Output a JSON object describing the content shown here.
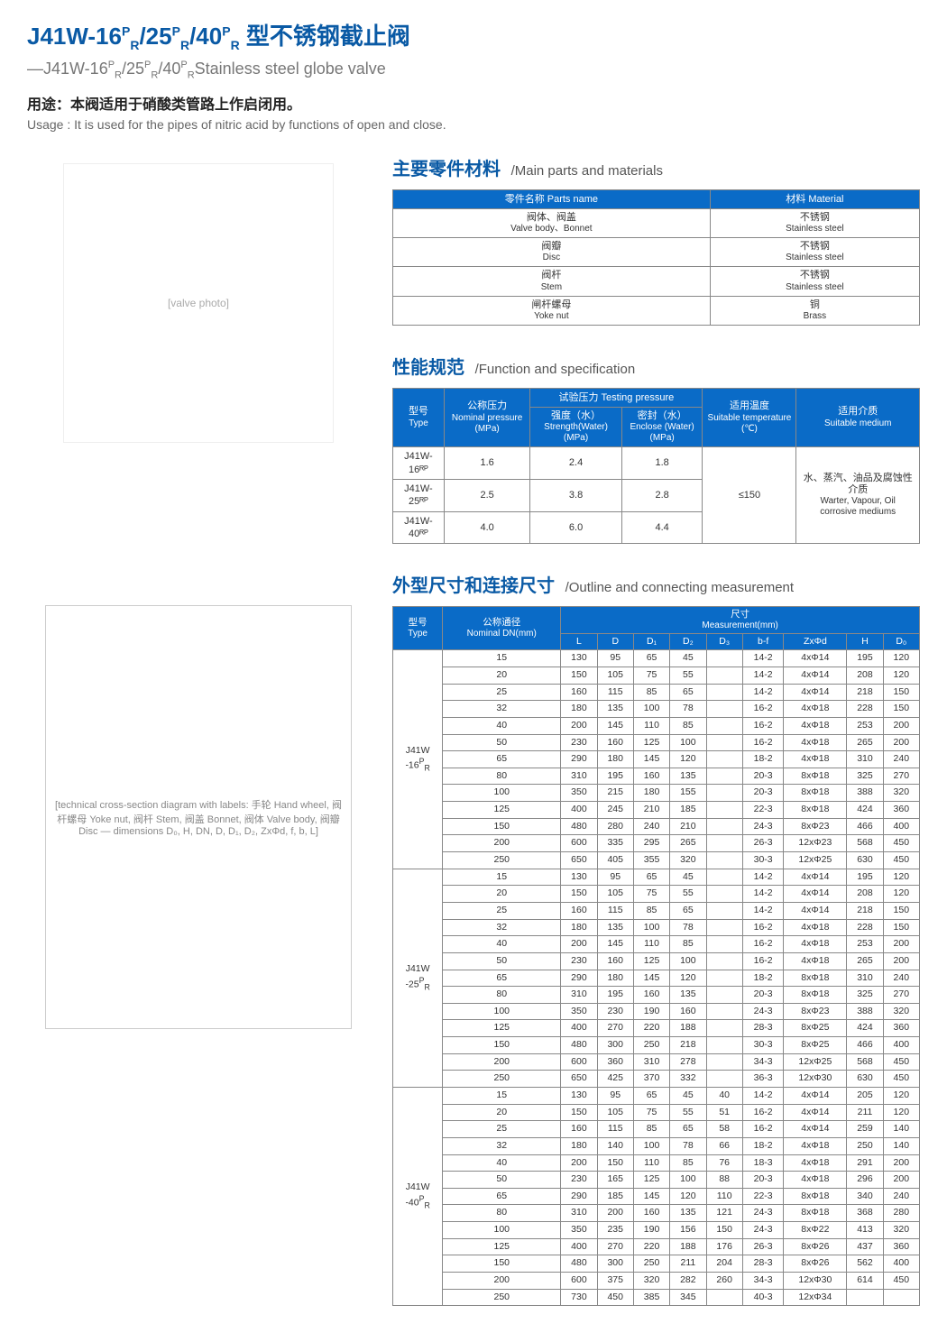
{
  "header": {
    "title_html": "J41W-16<sup>P</sup><sub>R</sub>/25<sup>P</sup><sub>R</sub>/40<sup>P</sup><sub>R</sub> 型不锈钢截止阀",
    "subtitle_html": "—J41W-16<sup>P</sup><sub>R</sub>/25<sup>P</sup><sub>R</sub>/40<sup>P</sup><sub>R</sub>Stainless steel globe valve",
    "usage_cn": "用途：本阀适用于硝酸类管路上作启闭用。",
    "usage_en": "Usage : It is used for the pipes of nitric acid by functions of open and close."
  },
  "placeholders": {
    "photo": "[valve photo]",
    "diagram": "[technical cross-section diagram with labels: 手轮 Hand wheel, 阀杆螺母 Yoke nut, 阀杆 Stem, 阀盖 Bonnet, 阀体 Valve body, 阀瓣 Disc — dimensions D₀, H, DN, D, D₁, D₂, ZxΦd, f, b, L]"
  },
  "sections": {
    "parts": {
      "title_cn": "主要零件材料",
      "title_en": "/Main parts and materials"
    },
    "spec": {
      "title_cn": "性能规范",
      "title_en": "/Function and specification"
    },
    "dims": {
      "title_cn": "外型尺寸和连接尺寸",
      "title_en": "/Outline and connecting measurement"
    }
  },
  "parts_table": {
    "header_parts": "零件名称  Parts name",
    "header_material": "材料  Material",
    "rows": [
      {
        "p_cn": "阀体、阀盖",
        "p_en": "Valve body、Bonnet",
        "m_cn": "不锈钢",
        "m_en": "Stainless steel"
      },
      {
        "p_cn": "阀瓣",
        "p_en": "Disc",
        "m_cn": "不锈钢",
        "m_en": "Stainless steel"
      },
      {
        "p_cn": "阀杆",
        "p_en": "Stem",
        "m_cn": "不锈钢",
        "m_en": "Stainless steel"
      },
      {
        "p_cn": "闸杆螺母",
        "p_en": "Yoke nut",
        "m_cn": "铜",
        "m_en": "Brass"
      }
    ]
  },
  "spec_table": {
    "h_type_cn": "型号",
    "h_type_en": "Type",
    "h_nominal_cn": "公称压力",
    "h_nominal_en": "Nominal pressure (MPa)",
    "h_test_cn": "试验压力 Testing pressure",
    "h_strength_cn": "强度（水）",
    "h_strength_en": "Strength(Water) (MPa)",
    "h_enclose_cn": "密封（水）",
    "h_enclose_en": "Enclose (Water) (MPa)",
    "h_temp_cn": "适用温度",
    "h_temp_en": "Suitable temperature (℃)",
    "h_medium_cn": "适用介质",
    "h_medium_en": "Suitable medium",
    "temp_val": "≤150",
    "medium_cn": "水、蒸汽、油品及腐蚀性介质",
    "medium_en": "Warter, Vapour, Oil corrosive mediums",
    "rows": [
      {
        "type": "J41W-16ᴿᴾ",
        "nominal": "1.6",
        "strength": "2.4",
        "enclose": "1.8"
      },
      {
        "type": "J41W-25ᴿᴾ",
        "nominal": "2.5",
        "strength": "3.8",
        "enclose": "2.8"
      },
      {
        "type": "J41W-40ᴿᴾ",
        "nominal": "4.0",
        "strength": "6.0",
        "enclose": "4.4"
      }
    ]
  },
  "dims_table": {
    "h_type_cn": "型号",
    "h_type_en": "Type",
    "h_dn_cn": "公称通径",
    "h_dn_en": "Nominal DN(mm)",
    "h_meas_cn": "尺寸",
    "h_meas_en": "Measurement(mm)",
    "cols": [
      "L",
      "D",
      "D₁",
      "D₂",
      "D₃",
      "b-f",
      "ZxΦd",
      "H",
      "D₀"
    ],
    "groups": [
      {
        "type_html": "J41W<br>-16<sup>P</sup><sub>R</sub>",
        "rows": [
          [
            "15",
            "130",
            "95",
            "65",
            "45",
            "",
            "14-2",
            "4xΦ14",
            "195",
            "120"
          ],
          [
            "20",
            "150",
            "105",
            "75",
            "55",
            "",
            "14-2",
            "4xΦ14",
            "208",
            "120"
          ],
          [
            "25",
            "160",
            "115",
            "85",
            "65",
            "",
            "14-2",
            "4xΦ14",
            "218",
            "150"
          ],
          [
            "32",
            "180",
            "135",
            "100",
            "78",
            "",
            "16-2",
            "4xΦ18",
            "228",
            "150"
          ],
          [
            "40",
            "200",
            "145",
            "110",
            "85",
            "",
            "16-2",
            "4xΦ18",
            "253",
            "200"
          ],
          [
            "50",
            "230",
            "160",
            "125",
            "100",
            "",
            "16-2",
            "4xΦ18",
            "265",
            "200"
          ],
          [
            "65",
            "290",
            "180",
            "145",
            "120",
            "",
            "18-2",
            "4xΦ18",
            "310",
            "240"
          ],
          [
            "80",
            "310",
            "195",
            "160",
            "135",
            "",
            "20-3",
            "8xΦ18",
            "325",
            "270"
          ],
          [
            "100",
            "350",
            "215",
            "180",
            "155",
            "",
            "20-3",
            "8xΦ18",
            "388",
            "320"
          ],
          [
            "125",
            "400",
            "245",
            "210",
            "185",
            "",
            "22-3",
            "8xΦ18",
            "424",
            "360"
          ],
          [
            "150",
            "480",
            "280",
            "240",
            "210",
            "",
            "24-3",
            "8xΦ23",
            "466",
            "400"
          ],
          [
            "200",
            "600",
            "335",
            "295",
            "265",
            "",
            "26-3",
            "12xΦ23",
            "568",
            "450"
          ],
          [
            "250",
            "650",
            "405",
            "355",
            "320",
            "",
            "30-3",
            "12xΦ25",
            "630",
            "450"
          ]
        ]
      },
      {
        "type_html": "J41W<br>-25<sup>P</sup><sub>R</sub>",
        "rows": [
          [
            "15",
            "130",
            "95",
            "65",
            "45",
            "",
            "14-2",
            "4xΦ14",
            "195",
            "120"
          ],
          [
            "20",
            "150",
            "105",
            "75",
            "55",
            "",
            "14-2",
            "4xΦ14",
            "208",
            "120"
          ],
          [
            "25",
            "160",
            "115",
            "85",
            "65",
            "",
            "14-2",
            "4xΦ14",
            "218",
            "150"
          ],
          [
            "32",
            "180",
            "135",
            "100",
            "78",
            "",
            "16-2",
            "4xΦ18",
            "228",
            "150"
          ],
          [
            "40",
            "200",
            "145",
            "110",
            "85",
            "",
            "16-2",
            "4xΦ18",
            "253",
            "200"
          ],
          [
            "50",
            "230",
            "160",
            "125",
            "100",
            "",
            "16-2",
            "4xΦ18",
            "265",
            "200"
          ],
          [
            "65",
            "290",
            "180",
            "145",
            "120",
            "",
            "18-2",
            "8xΦ18",
            "310",
            "240"
          ],
          [
            "80",
            "310",
            "195",
            "160",
            "135",
            "",
            "20-3",
            "8xΦ18",
            "325",
            "270"
          ],
          [
            "100",
            "350",
            "230",
            "190",
            "160",
            "",
            "24-3",
            "8xΦ23",
            "388",
            "320"
          ],
          [
            "125",
            "400",
            "270",
            "220",
            "188",
            "",
            "28-3",
            "8xΦ25",
            "424",
            "360"
          ],
          [
            "150",
            "480",
            "300",
            "250",
            "218",
            "",
            "30-3",
            "8xΦ25",
            "466",
            "400"
          ],
          [
            "200",
            "600",
            "360",
            "310",
            "278",
            "",
            "34-3",
            "12xΦ25",
            "568",
            "450"
          ],
          [
            "250",
            "650",
            "425",
            "370",
            "332",
            "",
            "36-3",
            "12xΦ30",
            "630",
            "450"
          ]
        ]
      },
      {
        "type_html": "J41W<br>-40<sup>P</sup><sub>R</sub>",
        "rows": [
          [
            "15",
            "130",
            "95",
            "65",
            "45",
            "40",
            "14-2",
            "4xΦ14",
            "205",
            "120"
          ],
          [
            "20",
            "150",
            "105",
            "75",
            "55",
            "51",
            "16-2",
            "4xΦ14",
            "211",
            "120"
          ],
          [
            "25",
            "160",
            "115",
            "85",
            "65",
            "58",
            "16-2",
            "4xΦ14",
            "259",
            "140"
          ],
          [
            "32",
            "180",
            "140",
            "100",
            "78",
            "66",
            "18-2",
            "4xΦ18",
            "250",
            "140"
          ],
          [
            "40",
            "200",
            "150",
            "110",
            "85",
            "76",
            "18-3",
            "4xΦ18",
            "291",
            "200"
          ],
          [
            "50",
            "230",
            "165",
            "125",
            "100",
            "88",
            "20-3",
            "4xΦ18",
            "296",
            "200"
          ],
          [
            "65",
            "290",
            "185",
            "145",
            "120",
            "110",
            "22-3",
            "8xΦ18",
            "340",
            "240"
          ],
          [
            "80",
            "310",
            "200",
            "160",
            "135",
            "121",
            "24-3",
            "8xΦ18",
            "368",
            "280"
          ],
          [
            "100",
            "350",
            "235",
            "190",
            "156",
            "150",
            "24-3",
            "8xΦ22",
            "413",
            "320"
          ],
          [
            "125",
            "400",
            "270",
            "220",
            "188",
            "176",
            "26-3",
            "8xΦ26",
            "437",
            "360"
          ],
          [
            "150",
            "480",
            "300",
            "250",
            "211",
            "204",
            "28-3",
            "8xΦ26",
            "562",
            "400"
          ],
          [
            "200",
            "600",
            "375",
            "320",
            "282",
            "260",
            "34-3",
            "12xΦ30",
            "614",
            "450"
          ],
          [
            "250",
            "730",
            "450",
            "385",
            "345",
            "",
            "40-3",
            "12xΦ34",
            "",
            ""
          ]
        ]
      }
    ]
  }
}
